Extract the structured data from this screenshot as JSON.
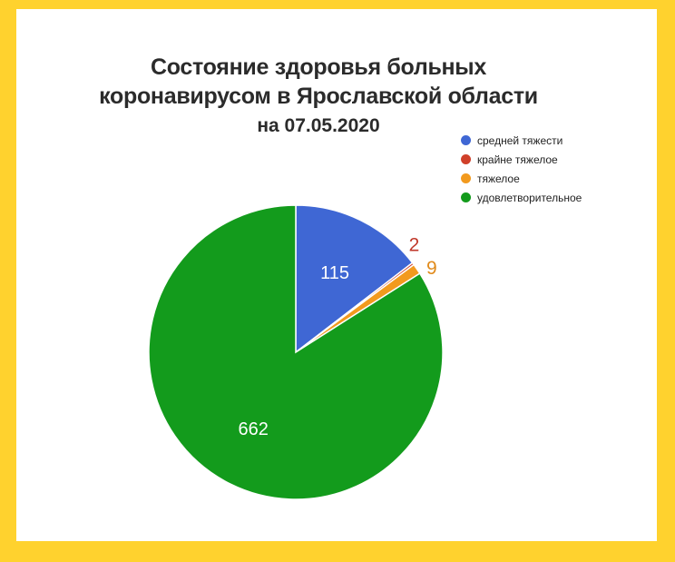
{
  "chart_data": {
    "type": "pie",
    "title_lines": [
      "Состояние здоровья больных",
      "коронавирусом в Ярославской области",
      "на 07.05.2020"
    ],
    "slices": [
      {
        "label": "средней тяжести",
        "value": 115,
        "color": "#3f67d4",
        "label_color": "#ffffff",
        "label_pos": "inside"
      },
      {
        "label": "крайне тяжелое",
        "value": 2,
        "color": "#d0402a",
        "label_color": "#c0392b",
        "label_pos": "outside"
      },
      {
        "label": "тяжелое",
        "value": 9,
        "color": "#f29a1e",
        "label_color": "#e08a1a",
        "label_pos": "outside"
      },
      {
        "label": "удовлетворительное",
        "value": 662,
        "color": "#139b1c",
        "label_color": "#ffffff",
        "label_pos": "inside"
      }
    ],
    "legend_position": "top-right",
    "start_angle_deg": 0,
    "direction": "clockwise"
  },
  "colors": {
    "page_background": "#ffd22e",
    "card_background": "#ffffff",
    "title_color": "#2b2b2b"
  }
}
